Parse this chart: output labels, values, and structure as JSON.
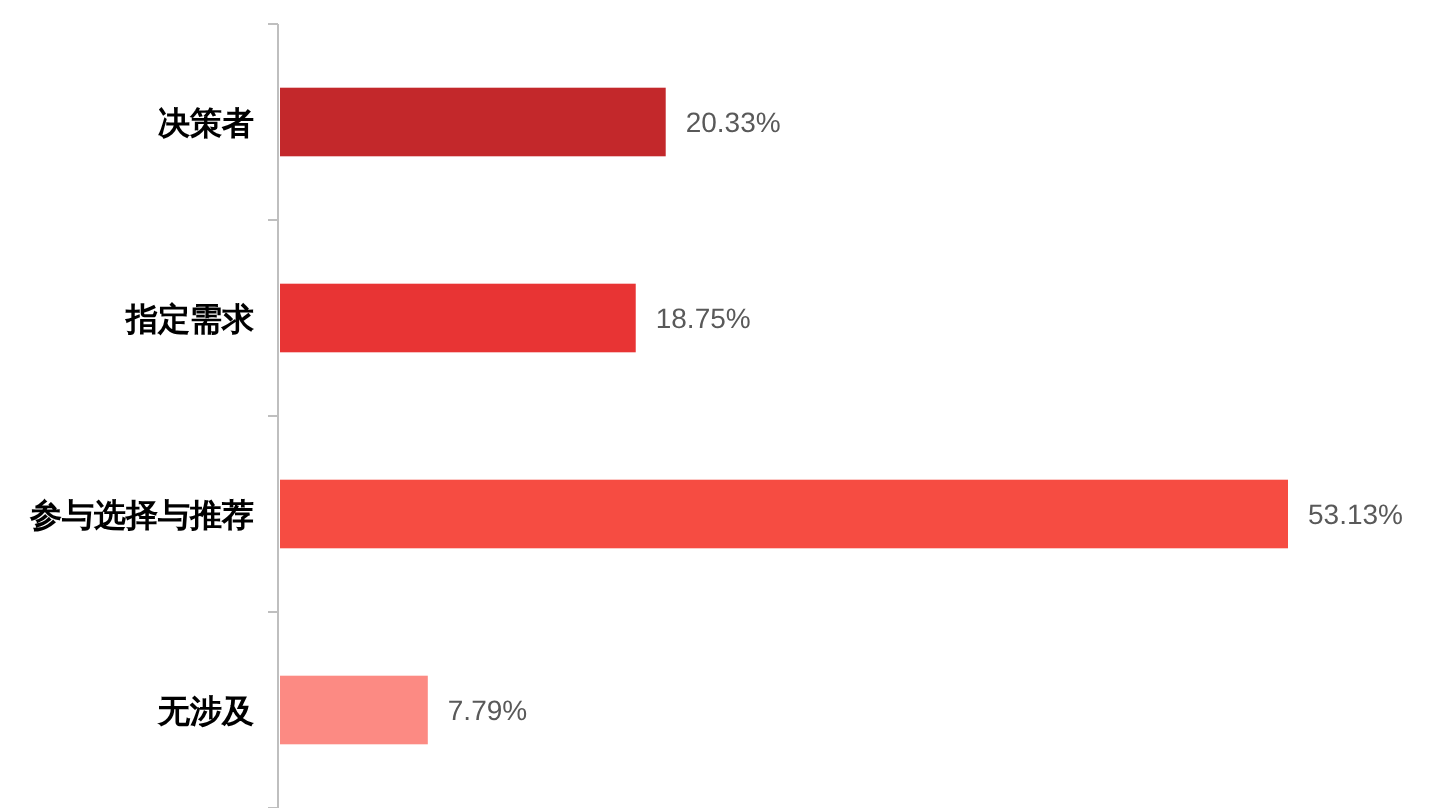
{
  "chart_data": {
    "type": "bar",
    "orientation": "horizontal",
    "categories": [
      "决策者",
      "指定需求",
      "参与选择与推荐",
      "无涉及"
    ],
    "values": [
      20.33,
      18.75,
      53.13,
      7.79
    ],
    "colors": [
      "#c3282b",
      "#e83434",
      "#f64c42",
      "#fc8a83"
    ],
    "value_labels": [
      "20.33%",
      "18.75%",
      "53.13%",
      "7.79%"
    ]
  }
}
